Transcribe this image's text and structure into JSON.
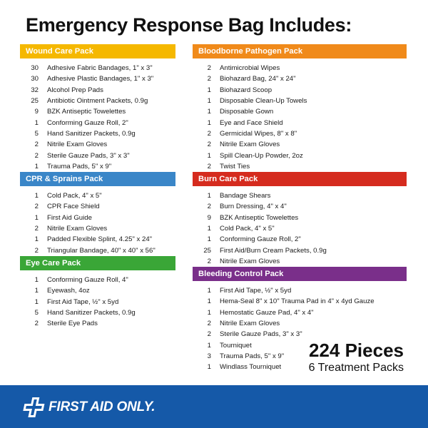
{
  "title": "Emergency Response Bag Includes:",
  "colors": {
    "wound_care": "#f5b800",
    "bloodborne": "#f08a1a",
    "cpr": "#3a86c8",
    "burn": "#d52b1e",
    "eye": "#3aa637",
    "bleeding": "#7a2f8a",
    "footer": "#1559a8"
  },
  "packs": [
    {
      "name": "Wound Care Pack",
      "items": [
        {
          "qty": "30",
          "name": "Adhesive Fabric Bandages, 1\" x 3\""
        },
        {
          "qty": "30",
          "name": "Adhesive Plastic Bandages, 1\" x 3\""
        },
        {
          "qty": "32",
          "name": "Alcohol Prep Pads"
        },
        {
          "qty": "25",
          "name": "Antibiotic Ointment Packets, 0.9g"
        },
        {
          "qty": "9",
          "name": "BZK Antiseptic Towelettes"
        },
        {
          "qty": "1",
          "name": "Conforming Gauze Roll, 2\""
        },
        {
          "qty": "5",
          "name": "Hand Sanitizer Packets, 0.9g"
        },
        {
          "qty": "2",
          "name": "Nitrile Exam Gloves"
        },
        {
          "qty": "2",
          "name": "Sterile Gauze Pads, 3\" x 3\""
        },
        {
          "qty": "1",
          "name": "Trauma Pads, 5\" x 9\""
        }
      ]
    },
    {
      "name": "CPR & Sprains Pack",
      "items": [
        {
          "qty": "1",
          "name": "Cold Pack, 4\" x 5\""
        },
        {
          "qty": "2",
          "name": "CPR Face Shield"
        },
        {
          "qty": "1",
          "name": "First Aid Guide"
        },
        {
          "qty": "2",
          "name": "Nitrile Exam Gloves"
        },
        {
          "qty": "1",
          "name": "Padded Flexible Splint, 4.25\" x 24\""
        },
        {
          "qty": "2",
          "name": "Triangular Bandage, 40\" x 40\" x 56\""
        }
      ]
    },
    {
      "name": "Eye Care Pack",
      "items": [
        {
          "qty": "1",
          "name": "Conforming Gauze Roll, 4\""
        },
        {
          "qty": "1",
          "name": "Eyewash, 4oz"
        },
        {
          "qty": "1",
          "name": "First Aid Tape, ½\" x 5yd"
        },
        {
          "qty": "5",
          "name": "Hand Sanitizer Packets, 0.9g"
        },
        {
          "qty": "2",
          "name": "Sterile Eye Pads"
        }
      ]
    },
    {
      "name": "Bloodborne Pathogen Pack",
      "items": [
        {
          "qty": "2",
          "name": "Antimicrobial Wipes"
        },
        {
          "qty": "2",
          "name": "Biohazard Bag, 24\" x 24\""
        },
        {
          "qty": "1",
          "name": "Biohazard Scoop"
        },
        {
          "qty": "1",
          "name": "Disposable Clean-Up Towels"
        },
        {
          "qty": "1",
          "name": "Disposable Gown"
        },
        {
          "qty": "1",
          "name": "Eye and Face Shield"
        },
        {
          "qty": "2",
          "name": "Germicidal Wipes, 8\" x 8\""
        },
        {
          "qty": "2",
          "name": "Nitrile Exam Gloves"
        },
        {
          "qty": "1",
          "name": "Spill Clean-Up Powder, 2oz"
        },
        {
          "qty": "2",
          "name": "Twist Ties"
        }
      ]
    },
    {
      "name": "Burn Care Pack",
      "items": [
        {
          "qty": "1",
          "name": "Bandage Shears"
        },
        {
          "qty": "2",
          "name": "Burn Dressing, 4\" x 4\""
        },
        {
          "qty": "9",
          "name": "BZK Antiseptic Towelettes"
        },
        {
          "qty": "1",
          "name": "Cold Pack, 4\" x 5\""
        },
        {
          "qty": "1",
          "name": "Conforming Gauze Roll, 2\""
        },
        {
          "qty": "25",
          "name": "First Aid/Burn Cream Packets, 0.9g"
        },
        {
          "qty": "2",
          "name": "Nitrile Exam Gloves"
        }
      ]
    },
    {
      "name": "Bleeding Control Pack",
      "items": [
        {
          "qty": "1",
          "name": "First Aid Tape, ½\" x 5yd"
        },
        {
          "qty": "1",
          "name": "Hema-Seal 8\" x 10\" Trauma Pad in 4\" x 4yd Gauze"
        },
        {
          "qty": "1",
          "name": "Hemostatic Gauze Pad, 4\" x 4\""
        },
        {
          "qty": "2",
          "name": "Nitrile Exam Gloves"
        },
        {
          "qty": "2",
          "name": "Sterile Gauze Pads, 3\" x 3\""
        },
        {
          "qty": "1",
          "name": "Tourniquet"
        },
        {
          "qty": "3",
          "name": "Trauma Pads, 5\" x 9\""
        },
        {
          "qty": "1",
          "name": "Windlass Tourniquet"
        }
      ]
    }
  ],
  "totals": {
    "pieces": "224 Pieces",
    "packs": "6 Treatment Packs"
  },
  "brand": {
    "name": "FIRST AID ONLY.",
    "logo_icon": "first-aid-cross-icon"
  }
}
